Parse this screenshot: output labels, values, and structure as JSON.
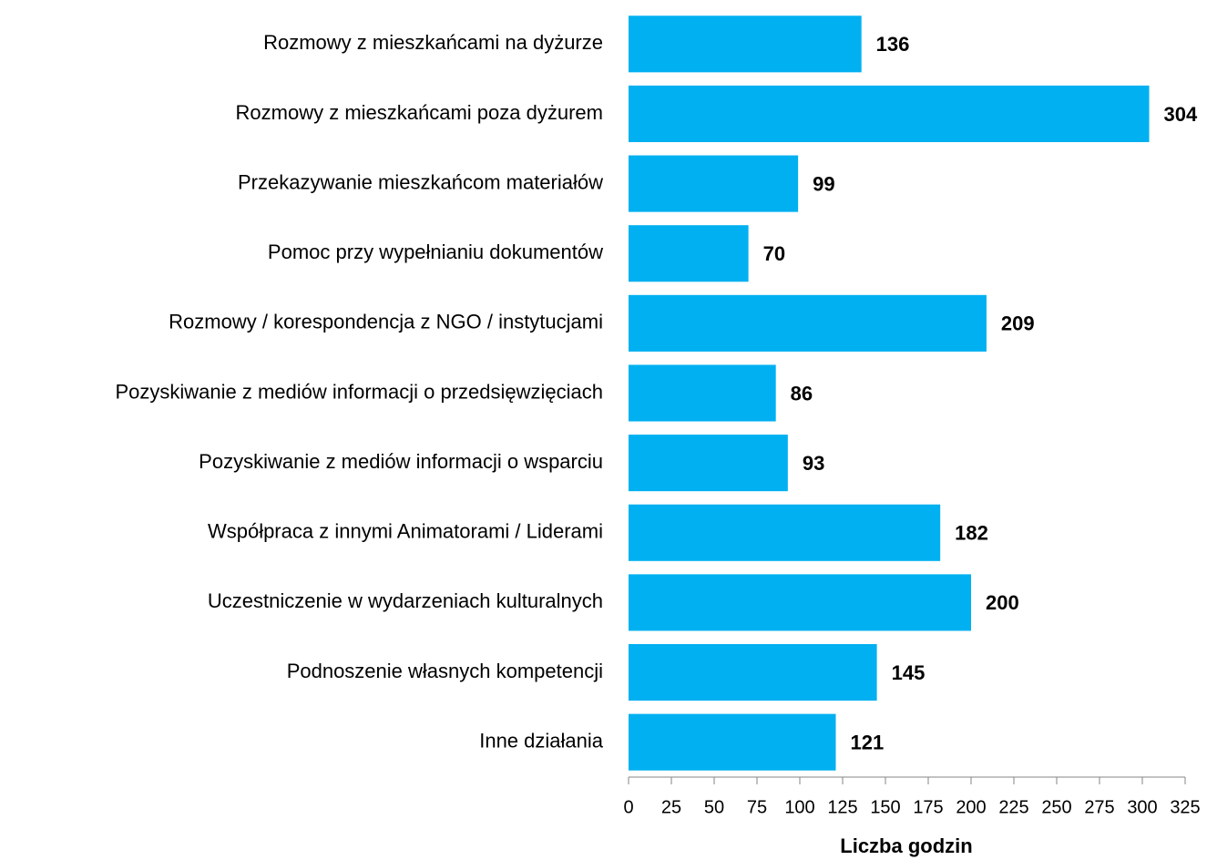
{
  "chart_data": {
    "type": "bar",
    "orientation": "horizontal",
    "x_label": "Liczba godzin",
    "categories": [
      "Rozmowy z mieszkańcami na dyżurze",
      "Rozmowy z mieszkańcami poza dyżurem",
      "Przekazywanie mieszkańcom materiałów",
      "Pomoc przy wypełnianiu dokumentów",
      "Rozmowy / korespondencja z NGO / instytucjami",
      "Pozyskiwanie z mediów informacji o przedsięwzięciach",
      "Pozyskiwanie z mediów informacji o wsparciu",
      "Współpraca z innymi Animatorami / Liderami",
      "Uczestniczenie w wydarzeniach kulturalnych",
      "Podnoszenie własnych kompetencji",
      "Inne działania"
    ],
    "values": [
      136,
      304,
      99,
      70,
      209,
      86,
      93,
      182,
      200,
      145,
      121
    ],
    "color": "#00b0f0",
    "xlim": [
      0,
      325
    ],
    "xticks": [
      0,
      25,
      50,
      75,
      100,
      125,
      150,
      175,
      200,
      225,
      250,
      275,
      300,
      325
    ],
    "grid": false
  }
}
